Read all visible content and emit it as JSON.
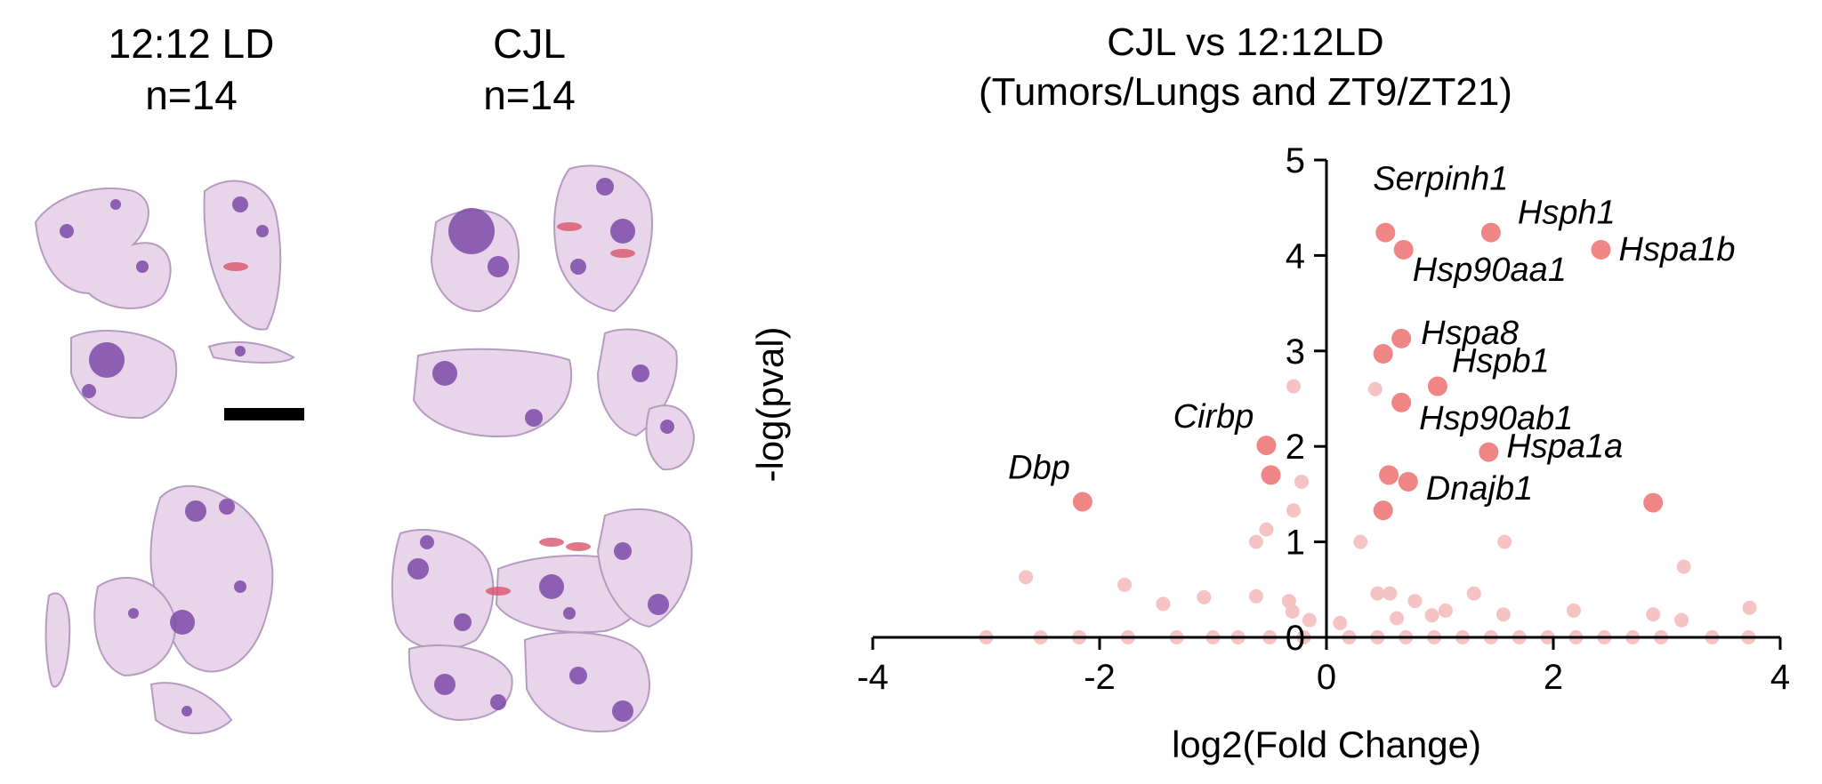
{
  "panels": {
    "ld": {
      "title": "12:12 LD",
      "n": "n=14"
    },
    "cjl": {
      "title": "CJL",
      "n": "n=14"
    }
  },
  "colors": {
    "tissue_fill": "#e9d5ea",
    "tissue_outline": "#b49cc0",
    "tumor_spot": "#7c4aa8",
    "blood": "#d8546c",
    "scale_bar": "#000000",
    "sig_point": "#ef8585",
    "nonsig_point": "#f5c3c3"
  },
  "chart_data": {
    "type": "scatter",
    "title": "CJL vs 12:12LD",
    "subtitle": "(Tumors/Lungs and ZT9/ZT21)",
    "xlabel": "log2(Fold Change)",
    "ylabel": "-log(pval)",
    "xlim": [
      -4,
      4
    ],
    "ylim": [
      0,
      5
    ],
    "xticks": [
      -4,
      -2,
      0,
      2,
      4
    ],
    "yticks": [
      0,
      1,
      2,
      3,
      4,
      5
    ],
    "grid": false,
    "significant": [
      {
        "gene": "Serpinh1",
        "x": 0.52,
        "y": 4.24
      },
      {
        "gene": "Hsph1",
        "x": 1.45,
        "y": 4.24
      },
      {
        "gene": "Hsp90aa1",
        "x": 0.68,
        "y": 4.06
      },
      {
        "gene": "Hspa1b",
        "x": 2.42,
        "y": 4.06
      },
      {
        "gene": "Hspa8",
        "x": 0.66,
        "y": 3.13
      },
      {
        "gene": "",
        "x": 0.5,
        "y": 2.97
      },
      {
        "gene": "Hspb1",
        "x": 0.98,
        "y": 2.63
      },
      {
        "gene": "Hsp90ab1",
        "x": 0.66,
        "y": 2.46
      },
      {
        "gene": "Cirbp",
        "x": -0.53,
        "y": 2.01
      },
      {
        "gene": "Hspa1a",
        "x": 1.43,
        "y": 1.94
      },
      {
        "gene": "",
        "x": -0.49,
        "y": 1.7
      },
      {
        "gene": "",
        "x": 0.55,
        "y": 1.7
      },
      {
        "gene": "Dnajb1",
        "x": 0.72,
        "y": 1.63
      },
      {
        "gene": "Dbp",
        "x": -2.15,
        "y": 1.42
      },
      {
        "gene": "",
        "x": 2.88,
        "y": 1.41
      },
      {
        "gene": "",
        "x": 0.5,
        "y": 1.33
      }
    ],
    "nonsignificant": [
      {
        "x": -0.29,
        "y": 2.63
      },
      {
        "x": 0.43,
        "y": 2.6
      },
      {
        "x": -0.22,
        "y": 1.63
      },
      {
        "x": -0.29,
        "y": 1.33
      },
      {
        "x": -0.53,
        "y": 1.13
      },
      {
        "x": 0.3,
        "y": 1.0
      },
      {
        "x": 1.57,
        "y": 1.0
      },
      {
        "x": -0.62,
        "y": 1.0
      },
      {
        "x": 3.15,
        "y": 0.74
      },
      {
        "x": -2.65,
        "y": 0.63
      },
      {
        "x": -1.78,
        "y": 0.55
      },
      {
        "x": 0.45,
        "y": 0.46
      },
      {
        "x": 0.56,
        "y": 0.46
      },
      {
        "x": 1.3,
        "y": 0.46
      },
      {
        "x": 0.78,
        "y": 0.38
      },
      {
        "x": -1.08,
        "y": 0.42
      },
      {
        "x": -0.62,
        "y": 0.43
      },
      {
        "x": -0.33,
        "y": 0.38
      },
      {
        "x": 3.73,
        "y": 0.31
      },
      {
        "x": 1.56,
        "y": 0.24
      },
      {
        "x": 2.88,
        "y": 0.24
      },
      {
        "x": 3.13,
        "y": 0.18
      },
      {
        "x": 2.18,
        "y": 0.28
      },
      {
        "x": 1.05,
        "y": 0.28
      },
      {
        "x": 0.93,
        "y": 0.23
      },
      {
        "x": -0.3,
        "y": 0.27
      },
      {
        "x": 0.12,
        "y": 0.15
      },
      {
        "x": -0.15,
        "y": 0.18
      },
      {
        "x": 0.62,
        "y": 0.2
      },
      {
        "x": -1.44,
        "y": 0.35
      },
      {
        "x": -3.0,
        "y": 0.0
      },
      {
        "x": -2.52,
        "y": 0.0
      },
      {
        "x": -2.18,
        "y": 0.0
      },
      {
        "x": -1.75,
        "y": 0.0
      },
      {
        "x": -1.32,
        "y": 0.0
      },
      {
        "x": -1.0,
        "y": 0.0
      },
      {
        "x": -0.78,
        "y": 0.0
      },
      {
        "x": -0.5,
        "y": 0.0
      },
      {
        "x": -0.2,
        "y": 0.0
      },
      {
        "x": 0.2,
        "y": 0.0
      },
      {
        "x": 0.45,
        "y": 0.0
      },
      {
        "x": 0.7,
        "y": 0.0
      },
      {
        "x": 0.95,
        "y": 0.0
      },
      {
        "x": 1.2,
        "y": 0.0
      },
      {
        "x": 1.45,
        "y": 0.0
      },
      {
        "x": 1.7,
        "y": 0.0
      },
      {
        "x": 1.95,
        "y": 0.0
      },
      {
        "x": 2.2,
        "y": 0.0
      },
      {
        "x": 2.45,
        "y": 0.0
      },
      {
        "x": 2.7,
        "y": 0.0
      },
      {
        "x": 2.95,
        "y": 0.0
      },
      {
        "x": 3.4,
        "y": 0.0
      },
      {
        "x": 3.72,
        "y": 0.0
      }
    ]
  }
}
